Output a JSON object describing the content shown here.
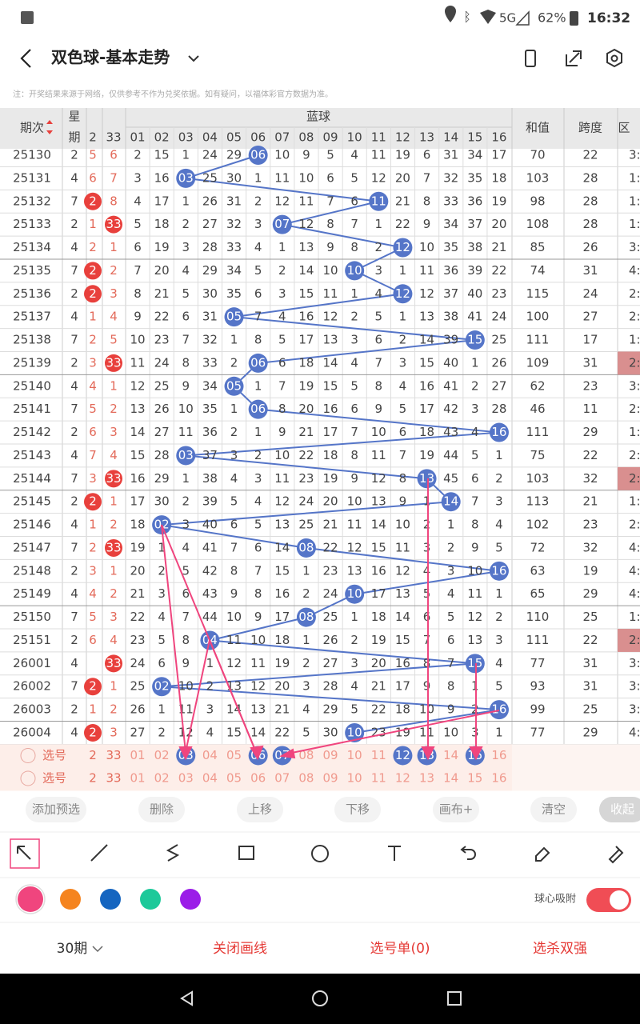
{
  "status_bar": {
    "network": "5G",
    "battery": "62%",
    "time": "16:32"
  },
  "header": {
    "title": "双色球-基本走势"
  },
  "notice": "注：开奖结果来源于网络，仅供参考不作为兑奖依据。如有疑问，以福体彩官方数据为准。",
  "table": {
    "columns": {
      "issue": "期次",
      "weekday": [
        "星",
        "期"
      ],
      "red": [
        "2",
        "33"
      ],
      "blue_group": "蓝球",
      "blue": [
        "01",
        "02",
        "03",
        "04",
        "05",
        "06",
        "07",
        "08",
        "09",
        "10",
        "11",
        "12",
        "13",
        "14",
        "15",
        "16"
      ],
      "sum": "和值",
      "span": "跨度",
      "zone": "区"
    },
    "rows": [
      {
        "issue": "25130",
        "weekday": 2,
        "red": [
          5,
          6
        ],
        "blue": [
          2,
          15,
          1,
          24,
          29,
          "06",
          10,
          9,
          5,
          4,
          11,
          19,
          6,
          31,
          34,
          17
        ],
        "sum": 70,
        "span": 22,
        "zone": "3:"
      },
      {
        "issue": "25131",
        "weekday": 4,
        "red": [
          6,
          7
        ],
        "blue": [
          3,
          16,
          "03",
          25,
          30,
          1,
          11,
          10,
          6,
          5,
          12,
          20,
          7,
          32,
          35,
          18
        ],
        "sum": 103,
        "span": 28,
        "zone": "1:"
      },
      {
        "issue": "25132",
        "weekday": 7,
        "red": [
          "2",
          8
        ],
        "blue": [
          4,
          17,
          1,
          26,
          31,
          2,
          12,
          11,
          7,
          6,
          "11",
          21,
          8,
          33,
          36,
          19
        ],
        "sum": 98,
        "span": 28,
        "zone": "1:"
      },
      {
        "issue": "25133",
        "weekday": 2,
        "red": [
          1,
          "33"
        ],
        "blue": [
          5,
          18,
          2,
          27,
          32,
          3,
          "07",
          12,
          8,
          7,
          1,
          22,
          9,
          34,
          37,
          20
        ],
        "sum": 108,
        "span": 28,
        "zone": "1:"
      },
      {
        "issue": "25134",
        "weekday": 4,
        "red": [
          2,
          1
        ],
        "blue": [
          6,
          19,
          3,
          28,
          33,
          4,
          1,
          13,
          9,
          8,
          2,
          "12",
          10,
          35,
          38,
          21
        ],
        "sum": 85,
        "span": 26,
        "zone": "3:"
      },
      {
        "issue": "25135",
        "weekday": 7,
        "red": [
          "2",
          2
        ],
        "blue": [
          7,
          20,
          4,
          29,
          34,
          5,
          2,
          14,
          10,
          "10",
          3,
          1,
          11,
          36,
          39,
          22
        ],
        "sum": 74,
        "span": 31,
        "zone": "4:"
      },
      {
        "issue": "25136",
        "weekday": 2,
        "red": [
          "2",
          3
        ],
        "blue": [
          8,
          21,
          5,
          30,
          35,
          6,
          3,
          15,
          11,
          1,
          4,
          "12",
          12,
          37,
          40,
          23
        ],
        "sum": 115,
        "span": 24,
        "zone": "2:"
      },
      {
        "issue": "25137",
        "weekday": 4,
        "red": [
          1,
          4
        ],
        "blue": [
          9,
          22,
          6,
          31,
          "05",
          7,
          4,
          16,
          12,
          2,
          5,
          1,
          13,
          38,
          41,
          24
        ],
        "sum": 100,
        "span": 27,
        "zone": "2:"
      },
      {
        "issue": "25138",
        "weekday": 7,
        "red": [
          2,
          5
        ],
        "blue": [
          10,
          23,
          7,
          32,
          1,
          8,
          5,
          17,
          13,
          3,
          6,
          2,
          14,
          39,
          "15",
          25
        ],
        "sum": 111,
        "span": 17,
        "zone": "1:"
      },
      {
        "issue": "25139",
        "weekday": 2,
        "red": [
          3,
          "33"
        ],
        "blue": [
          11,
          24,
          8,
          33,
          2,
          "06",
          6,
          18,
          14,
          4,
          7,
          3,
          15,
          40,
          1,
          26
        ],
        "sum": 109,
        "span": 31,
        "zone": "2:",
        "zone_hot": true
      },
      {
        "issue": "25140",
        "weekday": 4,
        "red": [
          4,
          1
        ],
        "blue": [
          12,
          25,
          9,
          34,
          "05",
          1,
          7,
          19,
          15,
          5,
          8,
          4,
          16,
          41,
          2,
          27
        ],
        "sum": 62,
        "span": 23,
        "zone": "3:"
      },
      {
        "issue": "25141",
        "weekday": 7,
        "red": [
          5,
          2
        ],
        "blue": [
          13,
          26,
          10,
          35,
          1,
          "06",
          8,
          20,
          16,
          6,
          9,
          5,
          17,
          42,
          3,
          28
        ],
        "sum": 46,
        "span": 11,
        "zone": "2:"
      },
      {
        "issue": "25142",
        "weekday": 2,
        "red": [
          6,
          3
        ],
        "blue": [
          14,
          27,
          11,
          36,
          2,
          1,
          9,
          21,
          17,
          7,
          10,
          6,
          18,
          43,
          4,
          "16"
        ],
        "sum": 111,
        "span": 29,
        "zone": "1:"
      },
      {
        "issue": "25143",
        "weekday": 4,
        "red": [
          7,
          4
        ],
        "blue": [
          15,
          28,
          "03",
          37,
          3,
          2,
          10,
          22,
          18,
          8,
          11,
          7,
          19,
          44,
          5,
          1
        ],
        "sum": 75,
        "span": 22,
        "zone": "2:"
      },
      {
        "issue": "25144",
        "weekday": 7,
        "red": [
          3,
          "33"
        ],
        "blue": [
          16,
          29,
          1,
          38,
          4,
          3,
          11,
          23,
          19,
          9,
          12,
          8,
          "13",
          45,
          6,
          2
        ],
        "sum": 103,
        "span": 32,
        "zone": "2:",
        "zone_hot": true
      },
      {
        "issue": "25145",
        "weekday": 2,
        "red": [
          "2",
          1
        ],
        "blue": [
          17,
          30,
          2,
          39,
          5,
          4,
          12,
          24,
          20,
          10,
          13,
          9,
          1,
          "14",
          7,
          3
        ],
        "sum": 113,
        "span": 21,
        "zone": "1:"
      },
      {
        "issue": "25146",
        "weekday": 4,
        "red": [
          1,
          2
        ],
        "blue": [
          18,
          "02",
          3,
          40,
          6,
          5,
          13,
          25,
          21,
          11,
          14,
          10,
          2,
          1,
          8,
          4
        ],
        "sum": 102,
        "span": 23,
        "zone": "2:"
      },
      {
        "issue": "25147",
        "weekday": 7,
        "red": [
          2,
          "33"
        ],
        "blue": [
          19,
          1,
          4,
          41,
          7,
          6,
          14,
          "08",
          22,
          12,
          15,
          11,
          3,
          2,
          9,
          5
        ],
        "sum": 72,
        "span": 32,
        "zone": "4:"
      },
      {
        "issue": "25148",
        "weekday": 2,
        "red": [
          3,
          1
        ],
        "blue": [
          20,
          2,
          5,
          42,
          8,
          7,
          15,
          1,
          23,
          13,
          16,
          12,
          4,
          3,
          10,
          "16"
        ],
        "sum": 63,
        "span": 19,
        "zone": "4:"
      },
      {
        "issue": "25149",
        "weekday": 4,
        "red": [
          4,
          2
        ],
        "blue": [
          21,
          3,
          6,
          43,
          9,
          8,
          16,
          2,
          24,
          "10",
          17,
          13,
          5,
          4,
          11,
          1
        ],
        "sum": 65,
        "span": 29,
        "zone": "4:"
      },
      {
        "issue": "25150",
        "weekday": 7,
        "red": [
          5,
          3
        ],
        "blue": [
          22,
          4,
          7,
          44,
          10,
          9,
          17,
          "08",
          25,
          1,
          18,
          14,
          6,
          5,
          12,
          2
        ],
        "sum": 110,
        "span": 25,
        "zone": "1:"
      },
      {
        "issue": "25151",
        "weekday": 2,
        "red": [
          6,
          4
        ],
        "blue": [
          23,
          5,
          8,
          "04",
          11,
          10,
          18,
          1,
          26,
          2,
          19,
          15,
          7,
          6,
          13,
          3
        ],
        "sum": 111,
        "span": 22,
        "zone": "2:",
        "zone_hot": true
      },
      {
        "issue": "26001",
        "weekday": 4,
        "red": [
          null,
          "33"
        ],
        "blue": [
          24,
          6,
          9,
          1,
          12,
          11,
          19,
          2,
          27,
          3,
          20,
          16,
          8,
          7,
          "15",
          4
        ],
        "sum": 77,
        "span": 31,
        "zone": "3:"
      },
      {
        "issue": "26002",
        "weekday": 7,
        "red": [
          "2",
          1
        ],
        "blue": [
          25,
          "02",
          10,
          2,
          13,
          12,
          20,
          3,
          28,
          4,
          21,
          17,
          9,
          8,
          1,
          5
        ],
        "sum": 93,
        "span": 31,
        "zone": "3:"
      },
      {
        "issue": "26003",
        "weekday": 2,
        "red": [
          1,
          2
        ],
        "blue": [
          26,
          1,
          11,
          3,
          14,
          13,
          21,
          4,
          29,
          5,
          22,
          18,
          10,
          9,
          2,
          "16"
        ],
        "sum": 99,
        "span": 25,
        "zone": "3:"
      },
      {
        "issue": "26004",
        "weekday": 4,
        "red": [
          "2",
          3
        ],
        "blue": [
          27,
          2,
          12,
          4,
          15,
          14,
          22,
          5,
          30,
          "10",
          23,
          19,
          11,
          10,
          3,
          1
        ],
        "sum": 77,
        "span": 29,
        "zone": "4:"
      }
    ]
  },
  "selector": {
    "rows": [
      {
        "label": "选号",
        "red": [
          "2",
          "33"
        ],
        "blue": [
          "01",
          "02",
          "03",
          "04",
          "05",
          "06",
          "07",
          "08",
          "09",
          "10",
          "11",
          "12",
          "13",
          "14",
          "15",
          "16"
        ],
        "selected": [
          "03",
          "06",
          "07",
          "12",
          "13",
          "15"
        ]
      },
      {
        "label": "选号",
        "red": [
          "2",
          "33"
        ],
        "blue": [
          "01",
          "02",
          "03",
          "04",
          "05",
          "06",
          "07",
          "08",
          "09",
          "10",
          "11",
          "12",
          "13",
          "14",
          "15",
          "16"
        ],
        "selected": []
      }
    ]
  },
  "actions": [
    "添加预选",
    "删除",
    "上移",
    "下移",
    "画布+",
    "清空",
    "收起"
  ],
  "pen_colors": [
    "#f0457e",
    "#f5841f",
    "#1565c0",
    "#1dc99a",
    "#9b1de8"
  ],
  "snap": {
    "label": "球心吸附",
    "on": true
  },
  "footer": {
    "period": "30期",
    "toggle_draw": "关闭画线",
    "picks": "选号单(0)",
    "kill": "选杀双强"
  }
}
